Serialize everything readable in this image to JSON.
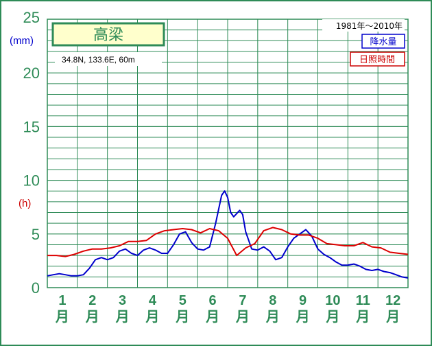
{
  "colors": {
    "grid": "#2e8b57",
    "frame": "#2e8b57",
    "precip": "#0000cc",
    "sunshine": "#dd0000",
    "title_bg": "#ffffcc"
  },
  "station": {
    "name": "高梁",
    "coords": "34.8N,  133.6E,  60m"
  },
  "period": "1981年～2010年",
  "units": {
    "precip": "(mm)",
    "sunshine": "(h)"
  },
  "chart_data": {
    "type": "line",
    "title": "高梁",
    "ylim": [
      0,
      25
    ],
    "yticks": [
      "0",
      "5",
      "10",
      "15",
      "20",
      "25"
    ],
    "months": [
      "1",
      "2",
      "3",
      "4",
      "5",
      "6",
      "7",
      "8",
      "9",
      "10",
      "11",
      "12"
    ],
    "month_suffix": "月",
    "grid": true,
    "legend_placement": "top-right",
    "series": [
      {
        "name": "降水量",
        "color": "#0000cc",
        "x": [
          0.0,
          0.2,
          0.4,
          0.6,
          0.8,
          1.0,
          1.2,
          1.4,
          1.6,
          1.8,
          2.0,
          2.2,
          2.4,
          2.6,
          2.8,
          3.0,
          3.2,
          3.4,
          3.6,
          3.8,
          4.0,
          4.2,
          4.4,
          4.6,
          4.8,
          5.0,
          5.2,
          5.4,
          5.6,
          5.8,
          5.9,
          6.0,
          6.1,
          6.2,
          6.4,
          6.5,
          6.6,
          6.8,
          7.0,
          7.2,
          7.4,
          7.6,
          7.8,
          8.0,
          8.2,
          8.4,
          8.6,
          8.8,
          9.0,
          9.2,
          9.4,
          9.6,
          9.8,
          10.0,
          10.2,
          10.4,
          10.6,
          10.8,
          11.0,
          11.2,
          11.4,
          11.6,
          11.8,
          12.0
        ],
        "values": [
          1.1,
          1.2,
          1.3,
          1.2,
          1.1,
          1.1,
          1.2,
          1.8,
          2.6,
          2.8,
          2.6,
          2.8,
          3.4,
          3.6,
          3.2,
          3.0,
          3.5,
          3.7,
          3.5,
          3.2,
          3.2,
          4.0,
          5.0,
          5.2,
          4.2,
          3.6,
          3.5,
          3.8,
          6.0,
          8.6,
          9.0,
          8.4,
          7.0,
          6.6,
          7.2,
          6.8,
          5.2,
          3.6,
          3.5,
          3.8,
          3.4,
          2.6,
          2.8,
          3.8,
          4.6,
          5.0,
          5.4,
          4.8,
          3.6,
          3.1,
          2.8,
          2.4,
          2.1,
          2.1,
          2.2,
          2.0,
          1.7,
          1.6,
          1.7,
          1.5,
          1.4,
          1.2,
          1.0,
          0.9
        ]
      },
      {
        "name": "日照時間",
        "color": "#dd0000",
        "x": [
          0.0,
          0.3,
          0.6,
          0.9,
          1.2,
          1.5,
          1.8,
          2.1,
          2.4,
          2.7,
          3.0,
          3.3,
          3.6,
          3.9,
          4.2,
          4.5,
          4.8,
          5.1,
          5.4,
          5.7,
          6.0,
          6.3,
          6.6,
          6.9,
          7.2,
          7.5,
          7.8,
          8.1,
          8.4,
          8.7,
          9.0,
          9.3,
          9.6,
          9.9,
          10.2,
          10.5,
          10.8,
          11.1,
          11.4,
          11.7,
          12.0
        ],
        "values": [
          3.0,
          3.0,
          2.9,
          3.1,
          3.4,
          3.6,
          3.6,
          3.7,
          3.9,
          4.3,
          4.3,
          4.4,
          5.0,
          5.3,
          5.4,
          5.5,
          5.4,
          5.1,
          5.5,
          5.3,
          4.6,
          3.0,
          3.7,
          4.1,
          5.3,
          5.6,
          5.4,
          5.0,
          4.9,
          4.9,
          4.6,
          4.1,
          4.0,
          3.9,
          3.9,
          4.2,
          3.8,
          3.7,
          3.3,
          3.2,
          3.1
        ]
      }
    ]
  }
}
